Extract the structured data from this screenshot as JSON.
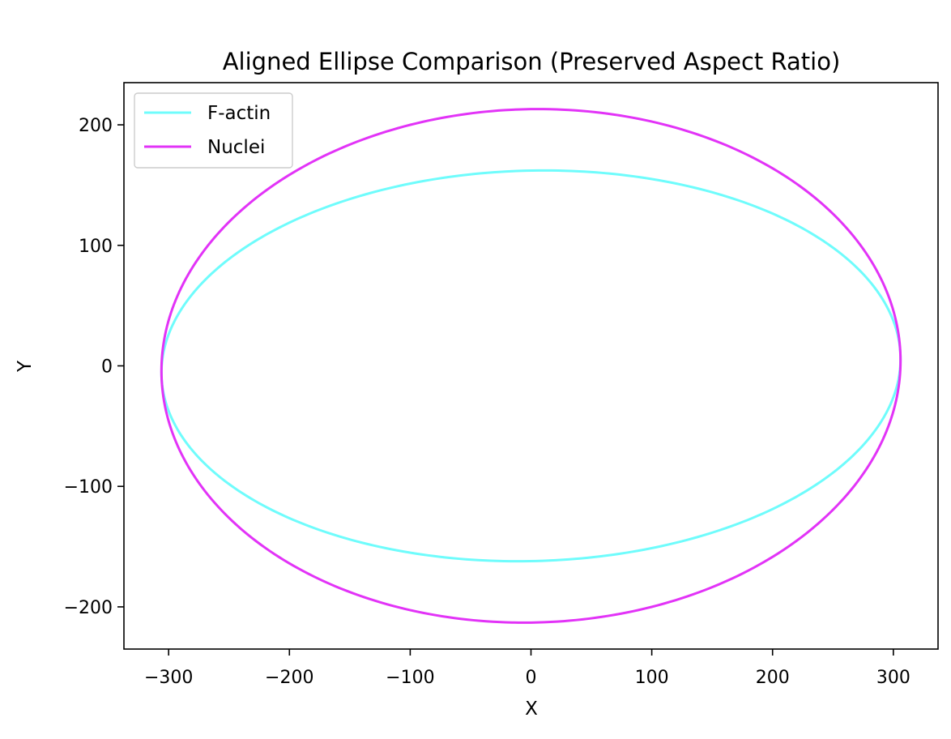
{
  "chart_data": {
    "type": "line",
    "title": "Aligned Ellipse Comparison (Preserved Aspect Ratio)",
    "xlabel": "X",
    "ylabel": "Y",
    "xlim": [
      -337,
      337
    ],
    "ylim": [
      -235,
      235
    ],
    "x_ticks": [
      -300,
      -200,
      -100,
      0,
      100,
      200,
      300
    ],
    "y_ticks": [
      -200,
      -100,
      0,
      100,
      200
    ],
    "x_tick_labels": [
      "−300",
      "−200",
      "−100",
      "0",
      "100",
      "200",
      "300"
    ],
    "y_tick_labels": [
      "−200",
      "−100",
      "0",
      "100",
      "200"
    ],
    "grid": false,
    "legend_position": "upper-left",
    "series": [
      {
        "name": "F-actin",
        "color": "#6ffcfc",
        "shape": "ellipse",
        "semi_major": 306,
        "semi_minor": 162,
        "tilt_degrees": 1.5,
        "center": [
          0,
          0
        ]
      },
      {
        "name": "Nuclei",
        "color": "#e233f7",
        "shape": "ellipse",
        "semi_major": 306,
        "semi_minor": 213,
        "tilt_degrees": 1.5,
        "center": [
          0,
          0
        ]
      }
    ]
  }
}
